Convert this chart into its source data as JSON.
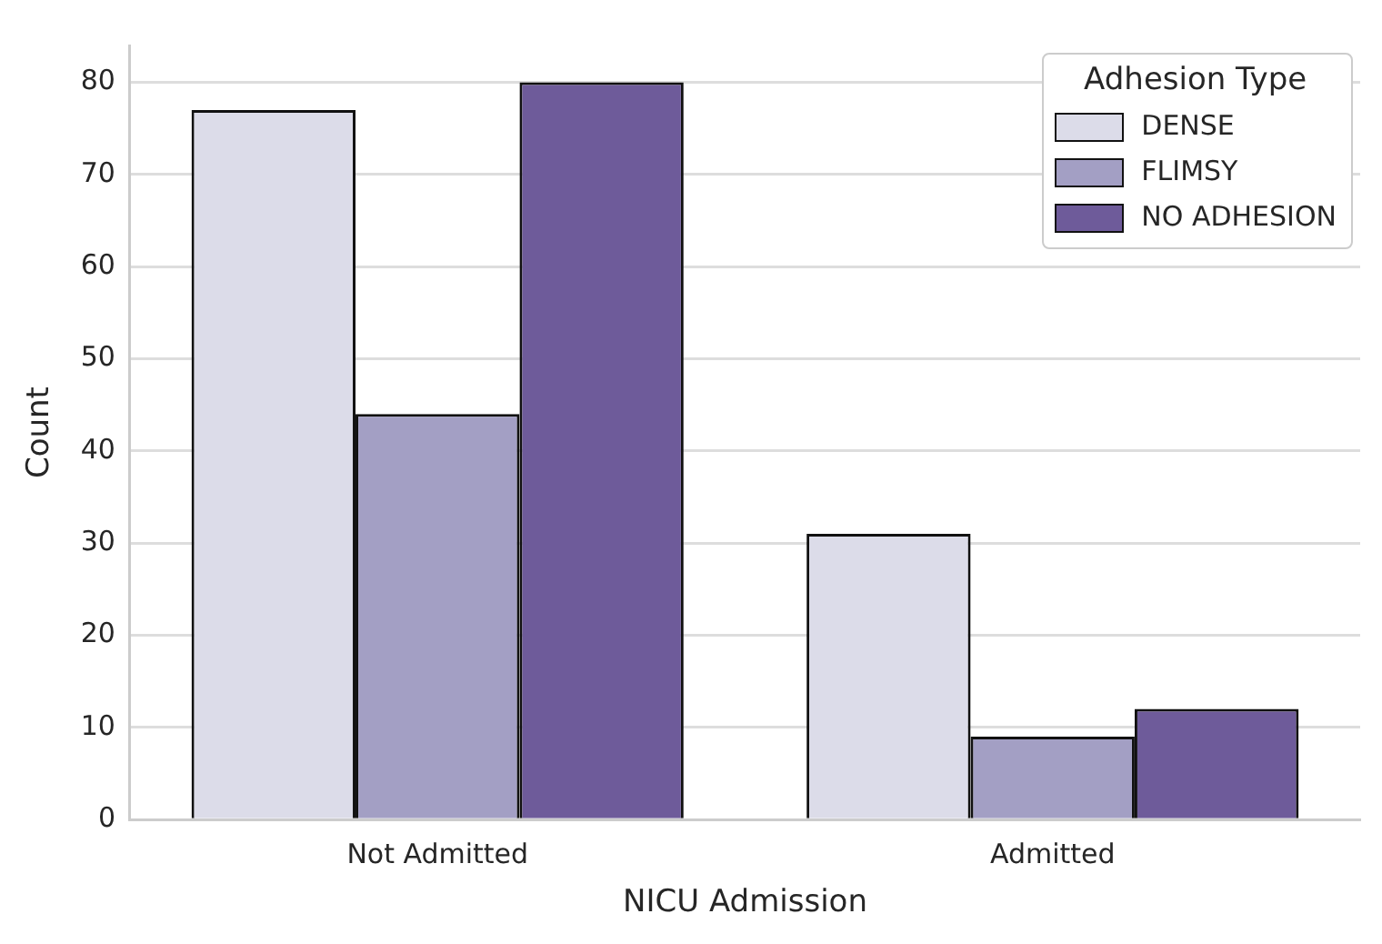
{
  "chart_data": {
    "type": "bar",
    "xlabel": "NICU Admission",
    "ylabel": "Count",
    "legend_title": "Adhesion Type",
    "categories": [
      "Not Admitted",
      "Admitted"
    ],
    "series": [
      {
        "name": "DENSE",
        "color": "#dcdce9",
        "values": [
          77,
          31
        ]
      },
      {
        "name": "FLIMSY",
        "color": "#a39fc4",
        "values": [
          44,
          9
        ]
      },
      {
        "name": "NO ADHESION",
        "color": "#6e5b9a",
        "values": [
          80,
          12
        ]
      }
    ],
    "ylim": [
      0,
      84
    ],
    "yticks": [
      0,
      10,
      20,
      30,
      40,
      50,
      60,
      70,
      80
    ],
    "grid": "y",
    "legend": "top right"
  }
}
